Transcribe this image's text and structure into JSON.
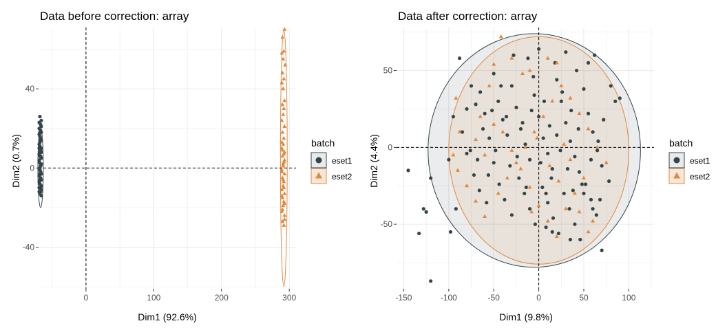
{
  "colors": {
    "eset1": "#34454a",
    "eset2": "#e0893e",
    "grid": "#ebebeb"
  },
  "legend": {
    "title": "batch",
    "items": [
      "eset1",
      "eset2"
    ]
  },
  "chart_data": [
    {
      "type": "scatter",
      "title": "Data before correction: array",
      "xlabel": "Dim1 (92.6%)",
      "ylabel": "Dim2 (0.7%)",
      "xlim": [
        -70,
        310
      ],
      "ylim": [
        -61,
        71
      ],
      "xticks": [
        0,
        100,
        200,
        300
      ],
      "xtick_labels": [
        "0",
        "100",
        "200",
        "300"
      ],
      "yticks": [
        -40,
        0,
        40
      ],
      "ytick_labels": [
        "-40",
        "0",
        "40"
      ],
      "legend_placement": "right",
      "grid": true,
      "ellipses": [
        {
          "series": "eset1",
          "cx": -67,
          "cy": 0,
          "rx": 4,
          "ry": 20,
          "fill": false
        },
        {
          "series": "eset2",
          "cx": 292,
          "cy": 5,
          "rx": 5,
          "ry": 65,
          "fill": false
        }
      ],
      "series": [
        {
          "name": "eset1",
          "marker": "circle",
          "points": [
            [
              -68,
              26
            ],
            [
              -66,
              24
            ],
            [
              -67,
              22
            ],
            [
              -69,
              20
            ],
            [
              -66,
              18
            ],
            [
              -68,
              16
            ],
            [
              -67,
              14
            ],
            [
              -69,
              12
            ],
            [
              -66,
              10
            ],
            [
              -68,
              8
            ],
            [
              -67,
              6
            ],
            [
              -69,
              4
            ],
            [
              -66,
              2
            ],
            [
              -68,
              0
            ],
            [
              -67,
              -2
            ],
            [
              -69,
              -4
            ],
            [
              -66,
              -6
            ],
            [
              -68,
              -8
            ],
            [
              -67,
              -10
            ],
            [
              -69,
              -12
            ],
            [
              -66,
              -14
            ],
            [
              -68,
              -3
            ],
            [
              -67,
              1
            ],
            [
              -69,
              7
            ],
            [
              -66,
              -9
            ],
            [
              -68,
              11
            ],
            [
              -67,
              15
            ],
            [
              -69,
              17
            ],
            [
              -66,
              5
            ],
            [
              -68,
              -1
            ],
            [
              -67,
              19
            ],
            [
              -69,
              -7
            ],
            [
              -66,
              -11
            ],
            [
              -68,
              13
            ],
            [
              -67,
              9
            ],
            [
              -69,
              3
            ],
            [
              -66,
              21
            ],
            [
              -68,
              -13
            ],
            [
              -67,
              -5
            ],
            [
              -69,
              23
            ],
            [
              -66,
              -3
            ],
            [
              -68,
              6
            ],
            [
              -67,
              -12
            ],
            [
              -69,
              10
            ],
            [
              -66,
              14
            ],
            [
              -68,
              -6
            ],
            [
              -67,
              2
            ],
            [
              -69,
              -10
            ],
            [
              -66,
              8
            ],
            [
              -68,
              18
            ]
          ]
        },
        {
          "name": "eset2",
          "marker": "triangle",
          "points": [
            [
              293,
              70
            ],
            [
              290,
              66
            ],
            [
              292,
              59
            ],
            [
              289,
              58
            ],
            [
              291,
              55
            ],
            [
              294,
              52
            ],
            [
              290,
              48
            ],
            [
              292,
              45
            ],
            [
              289,
              43
            ],
            [
              291,
              40
            ],
            [
              293,
              34
            ],
            [
              290,
              32
            ],
            [
              292,
              30
            ],
            [
              291,
              27
            ],
            [
              289,
              24
            ],
            [
              293,
              21
            ],
            [
              290,
              18
            ],
            [
              292,
              15
            ],
            [
              291,
              12
            ],
            [
              289,
              10
            ],
            [
              293,
              8
            ],
            [
              290,
              6
            ],
            [
              292,
              3
            ],
            [
              291,
              1
            ],
            [
              289,
              -1
            ],
            [
              293,
              -3
            ],
            [
              290,
              -5
            ],
            [
              292,
              -7
            ],
            [
              291,
              -9
            ],
            [
              289,
              -11
            ],
            [
              293,
              -13
            ],
            [
              290,
              -15
            ],
            [
              292,
              -17
            ],
            [
              291,
              -19
            ],
            [
              289,
              -22
            ],
            [
              293,
              -24
            ],
            [
              290,
              -27
            ],
            [
              292,
              -29
            ],
            [
              289,
              -2
            ],
            [
              293,
              4
            ],
            [
              291,
              -6
            ],
            [
              290,
              9
            ],
            [
              292,
              -10
            ],
            [
              289,
              -14
            ],
            [
              293,
              -18
            ],
            [
              291,
              2
            ],
            [
              290,
              -21
            ],
            [
              292,
              7
            ],
            [
              289,
              13
            ],
            [
              293,
              -26
            ]
          ]
        }
      ]
    },
    {
      "type": "scatter",
      "title": "Data after correction: array",
      "xlabel": "Dim1 (9.8%)",
      "ylabel": "Dim2 (4.4%)",
      "xlim": [
        -158,
        128
      ],
      "ylim": [
        -92,
        78
      ],
      "xticks": [
        -150,
        -100,
        -50,
        0,
        50,
        100
      ],
      "xtick_labels": [
        "-150",
        "-100",
        "-50",
        "0",
        "50",
        "100"
      ],
      "yticks": [
        -50,
        0,
        50
      ],
      "ytick_labels": [
        "-50",
        "0",
        "50"
      ],
      "legend_placement": "right",
      "grid": true,
      "ellipses": [
        {
          "series": "eset1",
          "cx": -5,
          "cy": -2,
          "rx": 118,
          "ry": 76,
          "fill": true
        },
        {
          "series": "eset2",
          "cx": 0,
          "cy": -2,
          "rx": 100,
          "ry": 74,
          "fill": true
        }
      ],
      "series": [
        {
          "name": "eset1",
          "marker": "circle",
          "points": [
            [
              -88,
              58
            ],
            [
              -75,
              40
            ],
            [
              -70,
              28
            ],
            [
              -65,
              36
            ],
            [
              -60,
              22
            ],
            [
              -50,
              48
            ],
            [
              -45,
              30
            ],
            [
              -40,
              18
            ],
            [
              -35,
              8
            ],
            [
              -30,
              40
            ],
            [
              -25,
              26
            ],
            [
              -20,
              12
            ],
            [
              -15,
              2
            ],
            [
              -10,
              -8
            ],
            [
              -5,
              34
            ],
            [
              0,
              20
            ],
            [
              5,
              6
            ],
            [
              10,
              -4
            ],
            [
              15,
              -14
            ],
            [
              20,
              44
            ],
            [
              25,
              30
            ],
            [
              30,
              16
            ],
            [
              35,
              4
            ],
            [
              40,
              -6
            ],
            [
              45,
              -16
            ],
            [
              50,
              38
            ],
            [
              55,
              22
            ],
            [
              60,
              10
            ],
            [
              65,
              -2
            ],
            [
              70,
              -12
            ],
            [
              -85,
              10
            ],
            [
              -80,
              -4
            ],
            [
              -72,
              -18
            ],
            [
              -66,
              -28
            ],
            [
              -58,
              -36
            ],
            [
              -50,
              -10
            ],
            [
              -44,
              -24
            ],
            [
              -38,
              -34
            ],
            [
              -30,
              -44
            ],
            [
              -22,
              -20
            ],
            [
              -16,
              -30
            ],
            [
              -10,
              -40
            ],
            [
              -4,
              -50
            ],
            [
              4,
              -26
            ],
            [
              10,
              -36
            ],
            [
              16,
              -46
            ],
            [
              22,
              -56
            ],
            [
              28,
              -30
            ],
            [
              34,
              -40
            ],
            [
              40,
              -50
            ],
            [
              46,
              -60
            ],
            [
              52,
              -24
            ],
            [
              58,
              -34
            ],
            [
              64,
              -44
            ],
            [
              -120,
              -20
            ],
            [
              -128,
              -40
            ],
            [
              -125,
              -42
            ],
            [
              -133,
              -56
            ],
            [
              -145,
              -15
            ],
            [
              -120,
              -87
            ],
            [
              -98,
              -55
            ],
            [
              -92,
              -40
            ],
            [
              70,
              -67
            ],
            [
              35,
              -60
            ],
            [
              15,
              -55
            ],
            [
              8,
              -52
            ],
            [
              0,
              64
            ],
            [
              -12,
              58
            ],
            [
              18,
              55
            ],
            [
              30,
              62
            ],
            [
              -28,
              60
            ],
            [
              42,
              50
            ],
            [
              55,
              55
            ],
            [
              62,
              60
            ],
            [
              80,
              40
            ],
            [
              85,
              30
            ],
            [
              90,
              32
            ],
            [
              -100,
              -8
            ],
            [
              -95,
              20
            ],
            [
              -80,
              25
            ],
            [
              -68,
              -8
            ],
            [
              -55,
              6
            ],
            [
              -48,
              -2
            ],
            [
              -32,
              -12
            ],
            [
              -18,
              16
            ],
            [
              -8,
              24
            ],
            [
              6,
              30
            ],
            [
              12,
              14
            ],
            [
              24,
              -2
            ],
            [
              36,
              24
            ],
            [
              48,
              -24
            ],
            [
              58,
              -8
            ],
            [
              72,
              18
            ],
            [
              78,
              -22
            ],
            [
              68,
              -34
            ],
            [
              -42,
              40
            ],
            [
              -56,
              -18
            ],
            [
              -62,
              12
            ],
            [
              -24,
              -6
            ],
            [
              2,
              -10
            ],
            [
              20,
              8
            ],
            [
              32,
              -14
            ],
            [
              44,
              12
            ],
            [
              50,
              -30
            ],
            [
              -6,
              46
            ],
            [
              14,
              -20
            ],
            [
              26,
              36
            ],
            [
              38,
              -28
            ],
            [
              -36,
              20
            ],
            [
              -14,
              -26
            ],
            [
              8,
              -30
            ],
            [
              66,
              4
            ],
            [
              -76,
              -2
            ],
            [
              60,
              -40
            ],
            [
              -52,
              24
            ]
          ]
        },
        {
          "name": "eset2",
          "marker": "triangle",
          "points": [
            [
              -42,
              72
            ],
            [
              -30,
              58
            ],
            [
              -50,
              54
            ],
            [
              -55,
              40
            ],
            [
              -18,
              48
            ],
            [
              -10,
              50
            ],
            [
              10,
              58
            ],
            [
              20,
              55
            ],
            [
              -92,
              32
            ],
            [
              -88,
              10
            ],
            [
              -95,
              -5
            ],
            [
              -90,
              -15
            ],
            [
              -80,
              -25
            ],
            [
              -70,
              -35
            ],
            [
              -60,
              -45
            ],
            [
              -45,
              -30
            ],
            [
              -35,
              -20
            ],
            [
              -25,
              -10
            ],
            [
              -15,
              0
            ],
            [
              -5,
              10
            ],
            [
              5,
              20
            ],
            [
              15,
              30
            ],
            [
              25,
              40
            ],
            [
              35,
              32
            ],
            [
              45,
              22
            ],
            [
              55,
              12
            ],
            [
              65,
              0
            ],
            [
              75,
              -10
            ],
            [
              -40,
              10
            ],
            [
              -30,
              -2
            ],
            [
              -20,
              -14
            ],
            [
              -10,
              -26
            ],
            [
              0,
              -38
            ],
            [
              10,
              -48
            ],
            [
              20,
              -58
            ],
            [
              30,
              -40
            ],
            [
              40,
              -30
            ],
            [
              50,
              -20
            ],
            [
              60,
              -48
            ],
            [
              -60,
              -5
            ],
            [
              -50,
              15
            ],
            [
              -65,
              20
            ],
            [
              12,
              -12
            ],
            [
              22,
              -22
            ],
            [
              -8,
              -42
            ],
            [
              45,
              -42
            ],
            [
              28,
              2
            ],
            [
              -2,
              6
            ],
            [
              35,
              -8
            ],
            [
              55,
              -55
            ],
            [
              -70,
              5
            ]
          ]
        }
      ]
    }
  ]
}
